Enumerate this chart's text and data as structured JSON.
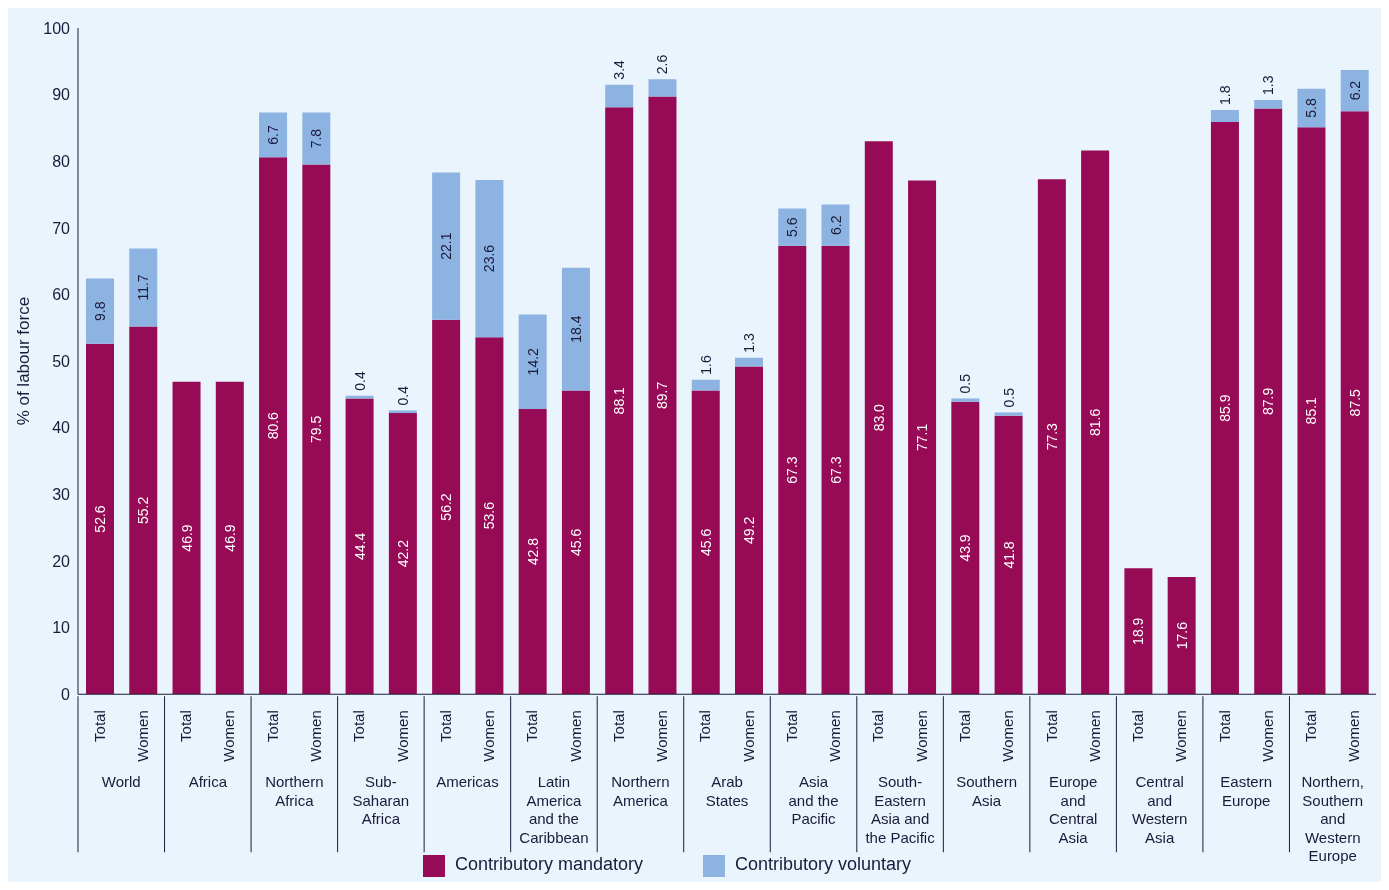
{
  "chart_data": {
    "type": "bar",
    "stacked": true,
    "ylabel": "% of labour force",
    "ylim": [
      0,
      100
    ],
    "yticks": [
      0,
      10,
      20,
      30,
      40,
      50,
      60,
      70,
      80,
      90,
      100
    ],
    "legend": "bottom",
    "categories": [
      "Total",
      "Women",
      "Total",
      "Women",
      "Total",
      "Women",
      "Total",
      "Women",
      "Total",
      "Women",
      "Total",
      "Women",
      "Total",
      "Women",
      "Total",
      "Women",
      "Total",
      "Women",
      "Total",
      "Women",
      "Total",
      "Women",
      "Total",
      "Women",
      "Total",
      "Women",
      "Total",
      "Women",
      "Total",
      "Women"
    ],
    "annotations": [
      "World",
      "Africa",
      "Northern\nAfrica",
      "Sub-\nSaharan\nAfrica",
      "Americas",
      "Latin\nAmerica\nand the\nCaribbean",
      "Northern\nAmerica",
      "Arab\nStates",
      "Asia\nand the\nPacific",
      "South-\nEastern\nAsia and\nthe Pacific",
      "Southern\nAsia",
      "Europe\nand\nCentral\nAsia",
      "Central\nand\nWestern\nAsia",
      "Eastern\nEurope",
      "Northern,\nSouthern\nand\nWestern\nEurope"
    ],
    "series": [
      {
        "name": "Contributory mandatory",
        "color": "#970a55",
        "values": [
          52.6,
          55.2,
          46.9,
          46.9,
          80.6,
          79.5,
          44.4,
          42.2,
          56.2,
          53.6,
          42.8,
          45.6,
          88.1,
          89.7,
          45.6,
          49.2,
          67.3,
          67.3,
          83.0,
          77.1,
          43.9,
          41.8,
          77.3,
          81.6,
          18.9,
          17.6,
          85.9,
          87.9,
          85.1,
          87.5
        ],
        "value_labels": [
          "52.6",
          "55.2",
          "46.9",
          "46.9",
          "80.6",
          "79.5",
          "44.4",
          "42.2",
          "56.2",
          "53.6",
          "42.8",
          "45.6",
          "88.1",
          "89.7",
          "45.6",
          "49.2",
          "67.3",
          "67.3",
          "83.0",
          "77.1",
          "43.9",
          "41.8",
          "77.3",
          "81.6",
          "18.9",
          "17.6",
          "85.9",
          "87.9",
          "85.1",
          "87.5"
        ]
      },
      {
        "name": "Contributory voluntary",
        "color": "#8db3e2",
        "values": [
          9.8,
          11.7,
          null,
          null,
          6.7,
          7.8,
          0.4,
          0.4,
          22.1,
          23.6,
          14.2,
          18.4,
          3.4,
          2.6,
          1.6,
          1.3,
          5.6,
          6.2,
          null,
          null,
          0.5,
          0.5,
          null,
          null,
          null,
          null,
          1.8,
          1.3,
          5.8,
          6.2
        ],
        "value_labels": [
          "9.8",
          "11.7",
          null,
          null,
          "6.7",
          "7.8",
          "0.4",
          "0.4",
          "22.1",
          "23.6",
          "14.2",
          "18.4",
          "3.4",
          "2.6",
          "1.6",
          "1.3",
          "5.6",
          "6.2",
          null,
          null,
          "0.5",
          "0.5",
          null,
          null,
          null,
          null,
          "1.8",
          "1.3",
          "5.8",
          "6.2"
        ]
      }
    ]
  }
}
